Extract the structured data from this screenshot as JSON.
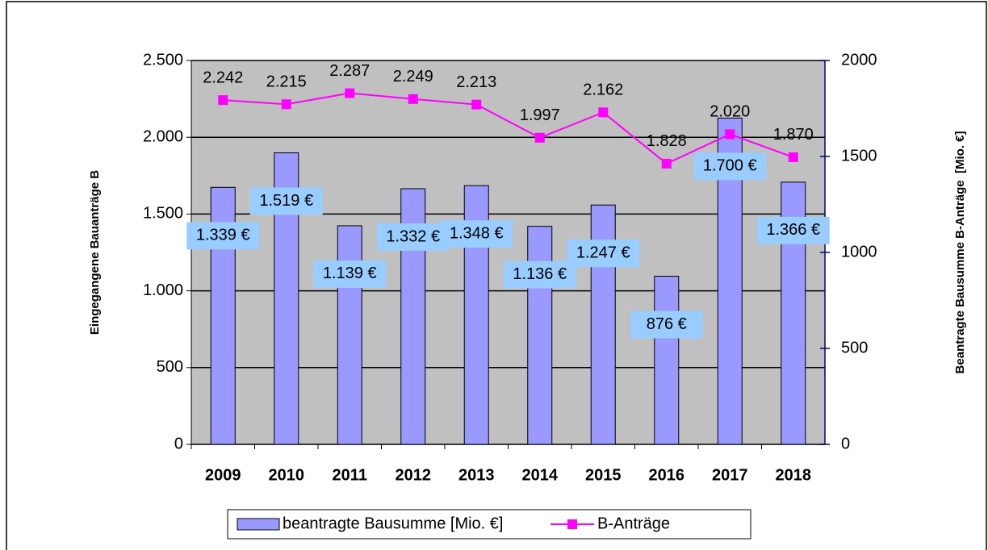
{
  "chart_data": {
    "type": "bar",
    "categories": [
      "2009",
      "2010",
      "2011",
      "2012",
      "2013",
      "2014",
      "2015",
      "2016",
      "2017",
      "2018"
    ],
    "series": [
      {
        "name": "beantragte Bausumme [Mio. €]",
        "type": "bar",
        "axis": "y2",
        "color": "#9999ff",
        "values": [
          1339,
          1519,
          1139,
          1332,
          1348,
          1136,
          1247,
          876,
          1700,
          1366
        ],
        "value_labels": [
          "1.339 €",
          "1.519 €",
          "1.139 €",
          "1.332 €",
          "1.348 €",
          "1.136 €",
          "1.247 €",
          "876 €",
          "1.700 €",
          "1.366 €"
        ]
      },
      {
        "name": "B-Anträge",
        "type": "line",
        "color": "#ff00ff",
        "values": [
          2242,
          2215,
          2287,
          2249,
          2213,
          1997,
          2162,
          1828,
          2020,
          1870
        ],
        "value_labels": [
          "2.242",
          "2.215",
          "2.287",
          "2.249",
          "2.213",
          "1.997",
          "2.162",
          "1.828",
          "2.020",
          "1.870"
        ]
      }
    ],
    "ylabel": "Eingegangene Bauanträge B",
    "y2label": "Beantragte Bausumme B-Anträge  [Mio. €]",
    "ylim": [
      0,
      2500
    ],
    "yticks": [
      0,
      500,
      {
        "value": 1000,
        "label": "1.000"
      },
      {
        "value": 1500,
        "label": "1.500"
      },
      {
        "value": 2000,
        "label": "2.000"
      },
      {
        "value": 2500,
        "label": "2.500"
      }
    ],
    "y2lim": [
      0,
      2000
    ],
    "y2ticks": [
      0,
      500,
      1000,
      1500,
      2000
    ],
    "grid": true,
    "legend": "bottom"
  }
}
